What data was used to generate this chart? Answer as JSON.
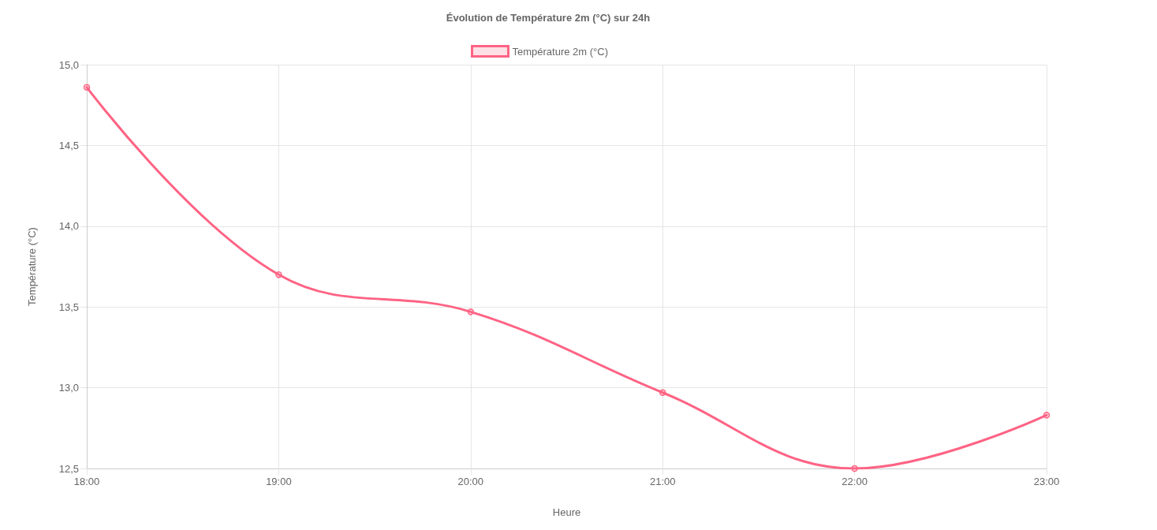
{
  "chart_data": {
    "type": "line",
    "title": "Évolution de Température 2m (°C) sur 24h",
    "xlabel": "Heure",
    "ylabel": "Température (°C)",
    "categories": [
      "18:00",
      "19:00",
      "20:00",
      "21:00",
      "22:00",
      "23:00"
    ],
    "series": [
      {
        "name": "Température 2m (°C)",
        "color": "#ff6384",
        "values": [
          14.86,
          13.7,
          13.47,
          12.97,
          12.5,
          12.83
        ]
      }
    ],
    "ylim": [
      12.5,
      15.0
    ],
    "yticks": [
      {
        "value": 12.5,
        "label": "12,5"
      },
      {
        "value": 13.0,
        "label": "13,0"
      },
      {
        "value": 13.5,
        "label": "13,5"
      },
      {
        "value": 14.0,
        "label": "14,0"
      },
      {
        "value": 14.5,
        "label": "14,5"
      },
      {
        "value": 15.0,
        "label": "15,0"
      }
    ],
    "grid": true,
    "legend": "top",
    "marker": "circle",
    "line_style": "solid"
  }
}
